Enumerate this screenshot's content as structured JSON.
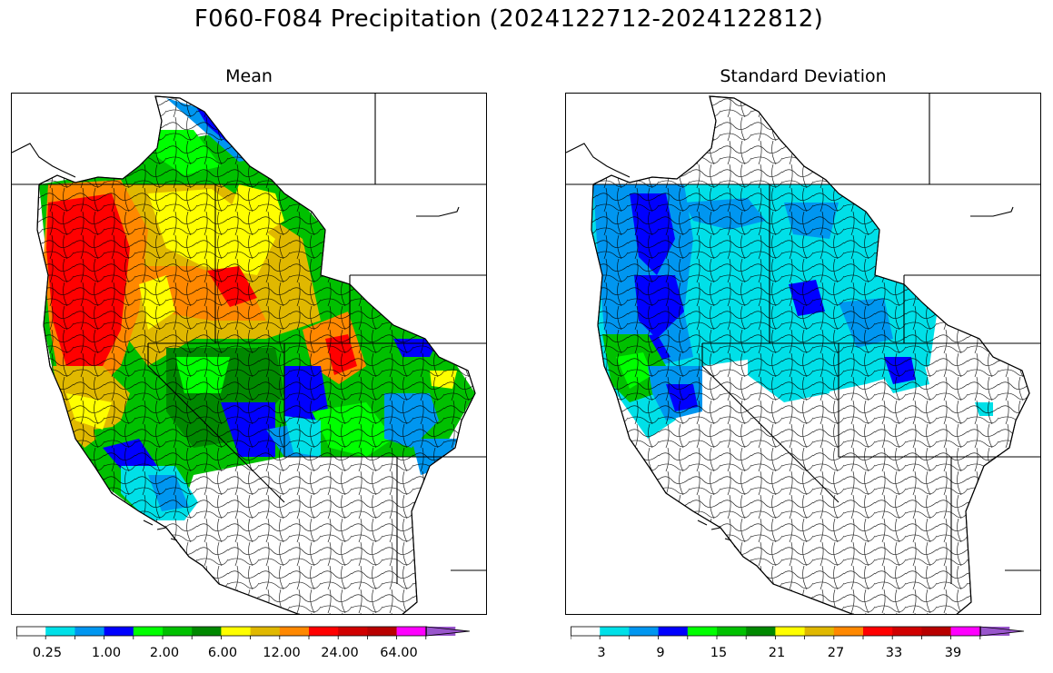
{
  "figure": {
    "title": "F060-F084 Precipitation (2024122712-2024122812)"
  },
  "panels": [
    {
      "title": "Mean",
      "colorbar": {
        "colors": [
          "#ffffff",
          "#00e0e8",
          "#0096f0",
          "#0000ff",
          "#00ff00",
          "#00c000",
          "#008800",
          "#ffff00",
          "#e0b800",
          "#ff8800",
          "#ff0000",
          "#d00000",
          "#b80000",
          "#ff00ff",
          "#9955cc"
        ],
        "tick_labels": [
          "0.25",
          "1.00",
          "2.00",
          "6.00",
          "12.00",
          "24.00",
          "64.00"
        ],
        "extend": "max"
      }
    },
    {
      "title": "Standard Deviation",
      "colorbar": {
        "colors": [
          "#ffffff",
          "#00e0e8",
          "#0096f0",
          "#0000ff",
          "#00ff00",
          "#00c000",
          "#008800",
          "#ffff00",
          "#e0b800",
          "#ff8800",
          "#ff0000",
          "#d00000",
          "#b80000",
          "#ff00ff",
          "#9955cc"
        ],
        "tick_labels": [
          "3",
          "9",
          "15",
          "21",
          "27",
          "33",
          "39"
        ],
        "extend": "max"
      }
    }
  ]
}
